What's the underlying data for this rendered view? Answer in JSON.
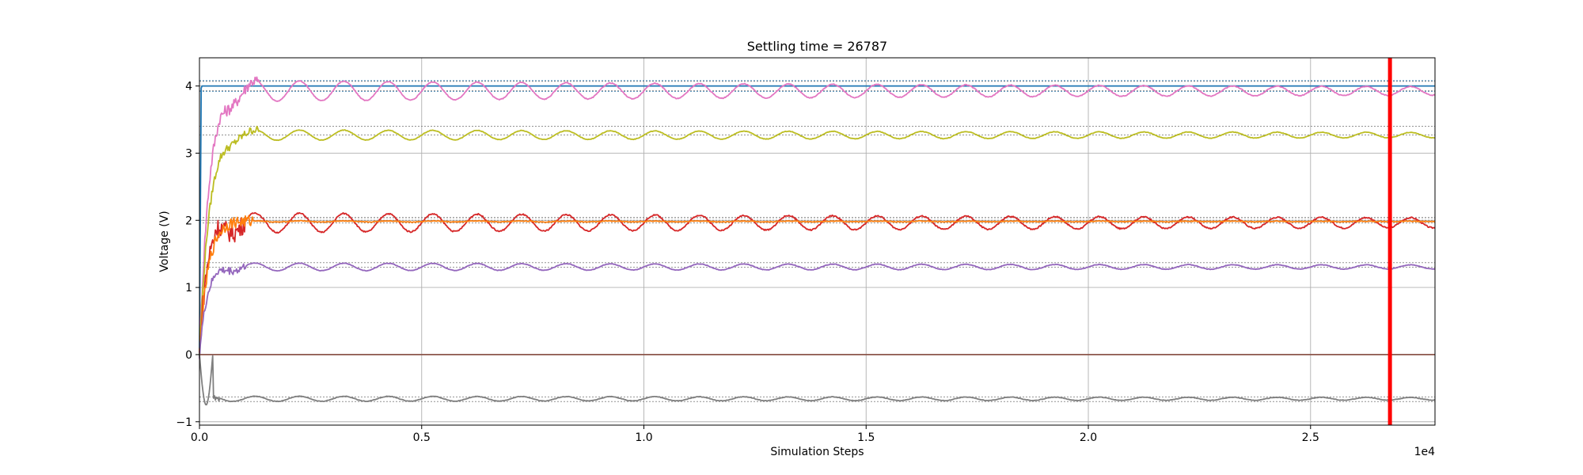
{
  "chart_data": {
    "type": "line",
    "title": "Settling time = 26787",
    "xlabel": "Simulation Steps",
    "ylabel": "Voltage (V)",
    "x_offset_label": "1e4",
    "xlim": [
      0,
      27800
    ],
    "ylim": [
      -1.05,
      4.42
    ],
    "grid": true,
    "legend": "none",
    "x_ticks": [
      0,
      5000,
      10000,
      15000,
      20000,
      25000
    ],
    "x_tick_labels": [
      "0.0",
      "0.5",
      "1.0",
      "1.5",
      "2.0",
      "2.5"
    ],
    "y_ticks": [
      -1,
      0,
      1,
      2,
      3,
      4
    ],
    "y_tick_labels": [
      "−1",
      "0",
      "1",
      "2",
      "3",
      "4"
    ],
    "settling_marker": {
      "x": 26787,
      "color": "#ff0000"
    },
    "series": [
      {
        "color": "#1f77b4",
        "final": 4.0,
        "band": [
          3.92,
          4.08
        ],
        "start": 0,
        "overshoot": 4.0,
        "rise": 120,
        "amp_peak": 0.0,
        "period": 1000,
        "decay": 100000,
        "noise": 0.0
      },
      {
        "color": "#e377c2",
        "final": 4.0,
        "band": [
          3.93,
          4.07
        ],
        "start": 0,
        "overshoot": 3.9,
        "rise": 900,
        "amp_peak": 0.16,
        "period": 1000,
        "decay": 30000,
        "noise": 0.03
      },
      {
        "color": "#bcbd22",
        "final": 3.33,
        "band": [
          3.27,
          3.4
        ],
        "start": 0,
        "overshoot": 3.2,
        "rise": 900,
        "amp_peak": 0.08,
        "period": 1000,
        "decay": 40000,
        "noise": 0.02
      },
      {
        "color": "#d62728",
        "final": 2.0,
        "band": [
          1.96,
          2.04
        ],
        "start": 0,
        "overshoot": 2.1,
        "rise": 700,
        "amp_peak": 0.15,
        "period": 1000,
        "decay": 40000,
        "noise": 0.05
      },
      {
        "color": "#ff7f0e",
        "final": 2.02,
        "band": [
          2.0,
          2.04
        ],
        "start": 0,
        "overshoot": 2.0,
        "rise": 800,
        "amp_peak": 0.01,
        "period": 1000,
        "decay": 20000,
        "noise": 0.03
      },
      {
        "color": "#9467bd",
        "final": 1.33,
        "band": [
          1.3,
          1.37
        ],
        "start": 0,
        "overshoot": 1.3,
        "rise": 700,
        "amp_peak": 0.06,
        "period": 1000,
        "decay": 40000,
        "noise": 0.02
      },
      {
        "color": "#8c564b",
        "final": 0.0,
        "band": [
          0.0,
          0.0
        ],
        "start": 0,
        "overshoot": 0.0,
        "rise": 10,
        "amp_peak": 0.0,
        "period": 1000,
        "decay": 1000,
        "noise": 0.0
      },
      {
        "color": "#7f7f7f",
        "final": -0.67,
        "band": [
          -0.7,
          -0.63
        ],
        "start": 0,
        "overshoot": -0.6,
        "rise": 300,
        "amp_peak": 0.04,
        "period": 1000,
        "decay": 40000,
        "noise": 0.02
      }
    ]
  }
}
